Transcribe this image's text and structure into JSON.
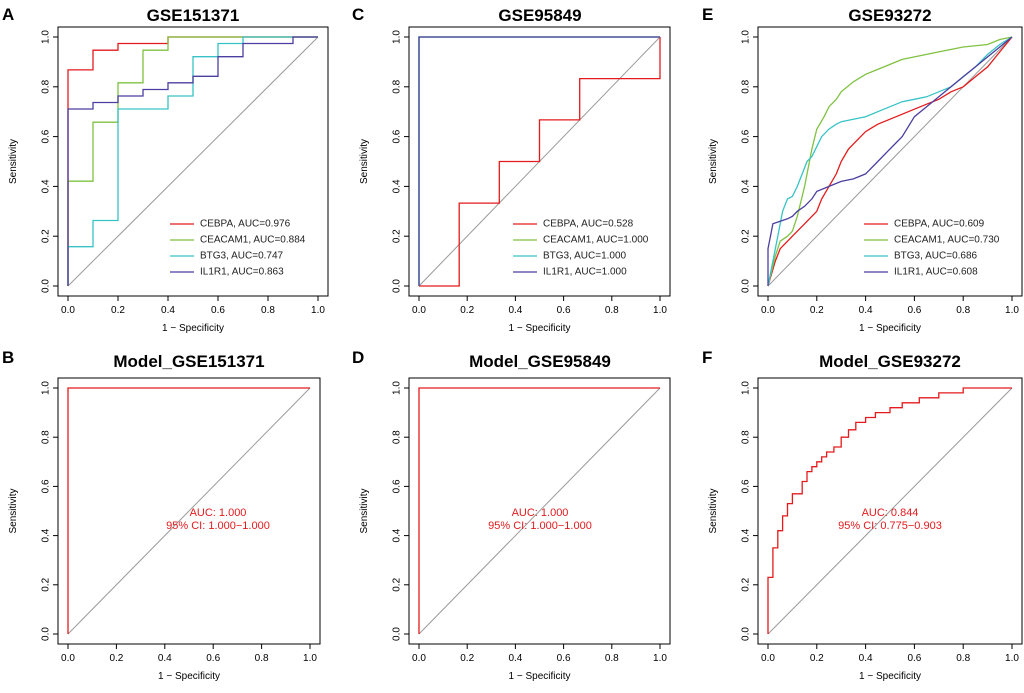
{
  "chart_data": [
    {
      "type": "line",
      "panel_letter": "A",
      "title": "GSE151371",
      "xlabel": "1 − Specificity",
      "ylabel": "Sensitivity",
      "xlim": [
        0,
        1
      ],
      "ylim": [
        0,
        1
      ],
      "xticks": [
        "0.0",
        "0.2",
        "0.4",
        "0.6",
        "0.8",
        "1.0"
      ],
      "yticks": [
        "0.0",
        "0.2",
        "0.4",
        "0.6",
        "0.8",
        "1.0"
      ],
      "diagonal": true,
      "legend_position": "bottom-right",
      "series": [
        {
          "name": "CEBPA",
          "label": "CEBPA, AUC=0.976",
          "color": "#e41a1c",
          "x": [
            0,
            0,
            0.1,
            0.1,
            0.2,
            0.2,
            0.4,
            0.4,
            1
          ],
          "y": [
            0,
            0.868,
            0.868,
            0.947,
            0.947,
            0.974,
            0.974,
            1,
            1
          ]
        },
        {
          "name": "CEACAM1",
          "label": "CEACAM1, AUC=0.884",
          "color": "#7fc241",
          "x": [
            0,
            0,
            0.1,
            0.1,
            0.2,
            0.2,
            0.3,
            0.3,
            0.4,
            0.4,
            1
          ],
          "y": [
            0,
            0.421,
            0.421,
            0.658,
            0.658,
            0.816,
            0.816,
            0.947,
            0.947,
            1,
            1
          ]
        },
        {
          "name": "BTG3",
          "label": "BTG3, AUC=0.747",
          "color": "#37c3c6",
          "x": [
            0,
            0,
            0.1,
            0.1,
            0.2,
            0.2,
            0.4,
            0.4,
            0.5,
            0.5,
            0.6,
            0.6,
            0.7,
            0.7,
            1
          ],
          "y": [
            0,
            0.158,
            0.158,
            0.263,
            0.263,
            0.711,
            0.711,
            0.763,
            0.763,
            0.921,
            0.921,
            0.974,
            0.974,
            1,
            1
          ]
        },
        {
          "name": "IL1R1",
          "label": "IL1R1, AUC=0.863",
          "color": "#4b3fa0",
          "x": [
            0,
            0,
            0.1,
            0.1,
            0.2,
            0.2,
            0.3,
            0.3,
            0.4,
            0.4,
            0.5,
            0.5,
            0.6,
            0.6,
            0.7,
            0.7,
            0.9,
            0.9,
            1
          ],
          "y": [
            0,
            0.711,
            0.711,
            0.737,
            0.737,
            0.763,
            0.763,
            0.789,
            0.789,
            0.816,
            0.816,
            0.842,
            0.842,
            0.921,
            0.921,
            0.974,
            0.974,
            1,
            1
          ]
        }
      ]
    },
    {
      "type": "line",
      "panel_letter": "C",
      "title": "GSE95849",
      "xlabel": "1 − Specificity",
      "ylabel": "Sensitivity",
      "xlim": [
        0,
        1
      ],
      "ylim": [
        0,
        1
      ],
      "xticks": [
        "0.0",
        "0.2",
        "0.4",
        "0.6",
        "0.8",
        "1.0"
      ],
      "yticks": [
        "0.0",
        "0.2",
        "0.4",
        "0.6",
        "0.8",
        "1.0"
      ],
      "diagonal": true,
      "legend_position": "bottom-right",
      "series": [
        {
          "name": "CEBPA",
          "label": "CEBPA, AUC=0.528",
          "color": "#e41a1c",
          "x": [
            0,
            0.167,
            0.167,
            0.333,
            0.333,
            0.5,
            0.5,
            0.667,
            0.667,
            1,
            1
          ],
          "y": [
            0,
            0,
            0.333,
            0.333,
            0.5,
            0.5,
            0.667,
            0.667,
            0.833,
            0.833,
            1
          ]
        },
        {
          "name": "CEACAM1",
          "label": "CEACAM1, AUC=1.000",
          "color": "#7fc241",
          "x": [
            0,
            0,
            1
          ],
          "y": [
            0,
            1,
            1
          ]
        },
        {
          "name": "BTG3",
          "label": "BTG3, AUC=1.000",
          "color": "#37c3c6",
          "x": [
            0,
            0,
            1
          ],
          "y": [
            0,
            1,
            1
          ]
        },
        {
          "name": "IL1R1",
          "label": "IL1R1, AUC=1.000",
          "color": "#4b3fa0",
          "x": [
            0,
            0,
            1
          ],
          "y": [
            0,
            1,
            1
          ]
        }
      ]
    },
    {
      "type": "line",
      "panel_letter": "E",
      "title": "GSE93272",
      "xlabel": "1 − Specificity",
      "ylabel": "Sensitivity",
      "xlim": [
        0,
        1
      ],
      "ylim": [
        0,
        1
      ],
      "xticks": [
        "0.0",
        "0.2",
        "0.4",
        "0.6",
        "0.8",
        "1.0"
      ],
      "yticks": [
        "0.0",
        "0.2",
        "0.4",
        "0.6",
        "0.8",
        "1.0"
      ],
      "diagonal": true,
      "legend_position": "bottom-right",
      "series": [
        {
          "name": "CEBPA",
          "label": "CEBPA, AUC=0.609",
          "color": "#e41a1c",
          "x": [
            0,
            0.03,
            0.05,
            0.08,
            0.1,
            0.12,
            0.15,
            0.18,
            0.2,
            0.22,
            0.25,
            0.28,
            0.3,
            0.33,
            0.36,
            0.4,
            0.45,
            0.5,
            0.55,
            0.6,
            0.65,
            0.7,
            0.75,
            0.8,
            0.85,
            0.9,
            0.95,
            1
          ],
          "y": [
            0,
            0.1,
            0.15,
            0.18,
            0.2,
            0.22,
            0.25,
            0.28,
            0.3,
            0.35,
            0.4,
            0.45,
            0.5,
            0.55,
            0.58,
            0.62,
            0.65,
            0.67,
            0.69,
            0.71,
            0.73,
            0.75,
            0.78,
            0.8,
            0.84,
            0.88,
            0.94,
            1
          ]
        },
        {
          "name": "CEACAM1",
          "label": "CEACAM1, AUC=0.730",
          "color": "#7fc241",
          "x": [
            0,
            0.03,
            0.05,
            0.08,
            0.1,
            0.12,
            0.15,
            0.18,
            0.2,
            0.23,
            0.25,
            0.28,
            0.3,
            0.35,
            0.4,
            0.45,
            0.5,
            0.55,
            0.6,
            0.65,
            0.7,
            0.8,
            0.9,
            0.95,
            1
          ],
          "y": [
            0,
            0.12,
            0.18,
            0.2,
            0.22,
            0.28,
            0.4,
            0.55,
            0.63,
            0.68,
            0.72,
            0.75,
            0.78,
            0.82,
            0.85,
            0.87,
            0.89,
            0.91,
            0.92,
            0.93,
            0.94,
            0.96,
            0.97,
            0.99,
            1
          ]
        },
        {
          "name": "BTG3",
          "label": "BTG3, AUC=0.686",
          "color": "#37c3c6",
          "x": [
            0,
            0.02,
            0.04,
            0.06,
            0.08,
            0.1,
            0.12,
            0.14,
            0.16,
            0.18,
            0.2,
            0.22,
            0.25,
            0.28,
            0.3,
            0.35,
            0.4,
            0.45,
            0.5,
            0.55,
            0.6,
            0.65,
            0.7,
            0.75,
            0.8,
            0.85,
            0.9,
            0.95,
            1
          ],
          "y": [
            0,
            0.1,
            0.2,
            0.3,
            0.35,
            0.36,
            0.4,
            0.45,
            0.5,
            0.52,
            0.56,
            0.6,
            0.63,
            0.65,
            0.66,
            0.67,
            0.68,
            0.7,
            0.72,
            0.74,
            0.75,
            0.76,
            0.78,
            0.8,
            0.84,
            0.88,
            0.93,
            0.97,
            1
          ]
        },
        {
          "name": "IL1R1",
          "label": "IL1R1, AUC=0.608",
          "color": "#4b3fa0",
          "x": [
            0,
            0,
            0.02,
            0.05,
            0.08,
            0.1,
            0.12,
            0.15,
            0.18,
            0.2,
            0.25,
            0.3,
            0.35,
            0.4,
            0.45,
            0.5,
            0.55,
            0.6,
            0.65,
            0.7,
            0.75,
            0.8,
            0.85,
            0.9,
            0.95,
            1
          ],
          "y": [
            0,
            0.15,
            0.25,
            0.26,
            0.27,
            0.28,
            0.3,
            0.32,
            0.35,
            0.38,
            0.4,
            0.42,
            0.43,
            0.45,
            0.5,
            0.55,
            0.6,
            0.68,
            0.72,
            0.76,
            0.8,
            0.84,
            0.88,
            0.92,
            0.96,
            1
          ]
        }
      ]
    },
    {
      "type": "line",
      "panel_letter": "B",
      "title": "Model_GSE151371",
      "xlabel": "1 − Specificity",
      "ylabel": "Sensitivity",
      "xlim": [
        0,
        1
      ],
      "ylim": [
        0,
        1
      ],
      "xticks": [
        "0.0",
        "0.2",
        "0.4",
        "0.6",
        "0.8",
        "1.0"
      ],
      "yticks": [
        "0.0",
        "0.2",
        "0.4",
        "0.6",
        "0.8",
        "1.0"
      ],
      "diagonal": true,
      "annotations": [
        "AUC: 1.000",
        "95% CI: 1.000−1.000"
      ],
      "series": [
        {
          "name": "Model",
          "color": "#e41a1c",
          "x": [
            0,
            0,
            1
          ],
          "y": [
            0,
            1,
            1
          ]
        }
      ]
    },
    {
      "type": "line",
      "panel_letter": "D",
      "title": "Model_GSE95849",
      "xlabel": "1 − Specificity",
      "ylabel": "Sensitivity",
      "xlim": [
        0,
        1
      ],
      "ylim": [
        0,
        1
      ],
      "xticks": [
        "0.0",
        "0.2",
        "0.4",
        "0.6",
        "0.8",
        "1.0"
      ],
      "yticks": [
        "0.0",
        "0.2",
        "0.4",
        "0.6",
        "0.8",
        "1.0"
      ],
      "diagonal": true,
      "annotations": [
        "AUC: 1.000",
        "95% CI: 1.000−1.000"
      ],
      "series": [
        {
          "name": "Model",
          "color": "#e41a1c",
          "x": [
            0,
            0,
            1
          ],
          "y": [
            0,
            1,
            1
          ]
        }
      ]
    },
    {
      "type": "line",
      "panel_letter": "F",
      "title": "Model_GSE93272",
      "xlabel": "1 − Specificity",
      "ylabel": "Sensitivity",
      "xlim": [
        0,
        1
      ],
      "ylim": [
        0,
        1
      ],
      "xticks": [
        "0.0",
        "0.2",
        "0.4",
        "0.6",
        "0.8",
        "1.0"
      ],
      "yticks": [
        "0.0",
        "0.2",
        "0.4",
        "0.6",
        "0.8",
        "1.0"
      ],
      "diagonal": true,
      "annotations": [
        "AUC: 0.844",
        "95% CI: 0.775−0.903"
      ],
      "series": [
        {
          "name": "Model",
          "color": "#e41a1c",
          "x": [
            0,
            0,
            0.02,
            0.02,
            0.04,
            0.04,
            0.06,
            0.06,
            0.08,
            0.08,
            0.1,
            0.1,
            0.14,
            0.14,
            0.16,
            0.16,
            0.18,
            0.18,
            0.2,
            0.2,
            0.22,
            0.22,
            0.24,
            0.24,
            0.27,
            0.27,
            0.3,
            0.3,
            0.33,
            0.33,
            0.36,
            0.36,
            0.4,
            0.4,
            0.44,
            0.44,
            0.5,
            0.5,
            0.55,
            0.55,
            0.62,
            0.62,
            0.7,
            0.7,
            0.8,
            0.8,
            1
          ],
          "y": [
            0,
            0.23,
            0.23,
            0.35,
            0.35,
            0.42,
            0.42,
            0.48,
            0.48,
            0.53,
            0.53,
            0.57,
            0.57,
            0.62,
            0.62,
            0.66,
            0.66,
            0.68,
            0.68,
            0.7,
            0.7,
            0.72,
            0.72,
            0.74,
            0.74,
            0.76,
            0.76,
            0.8,
            0.8,
            0.83,
            0.83,
            0.86,
            0.86,
            0.88,
            0.88,
            0.9,
            0.9,
            0.92,
            0.92,
            0.94,
            0.94,
            0.96,
            0.96,
            0.98,
            0.98,
            1,
            1
          ]
        }
      ]
    }
  ]
}
